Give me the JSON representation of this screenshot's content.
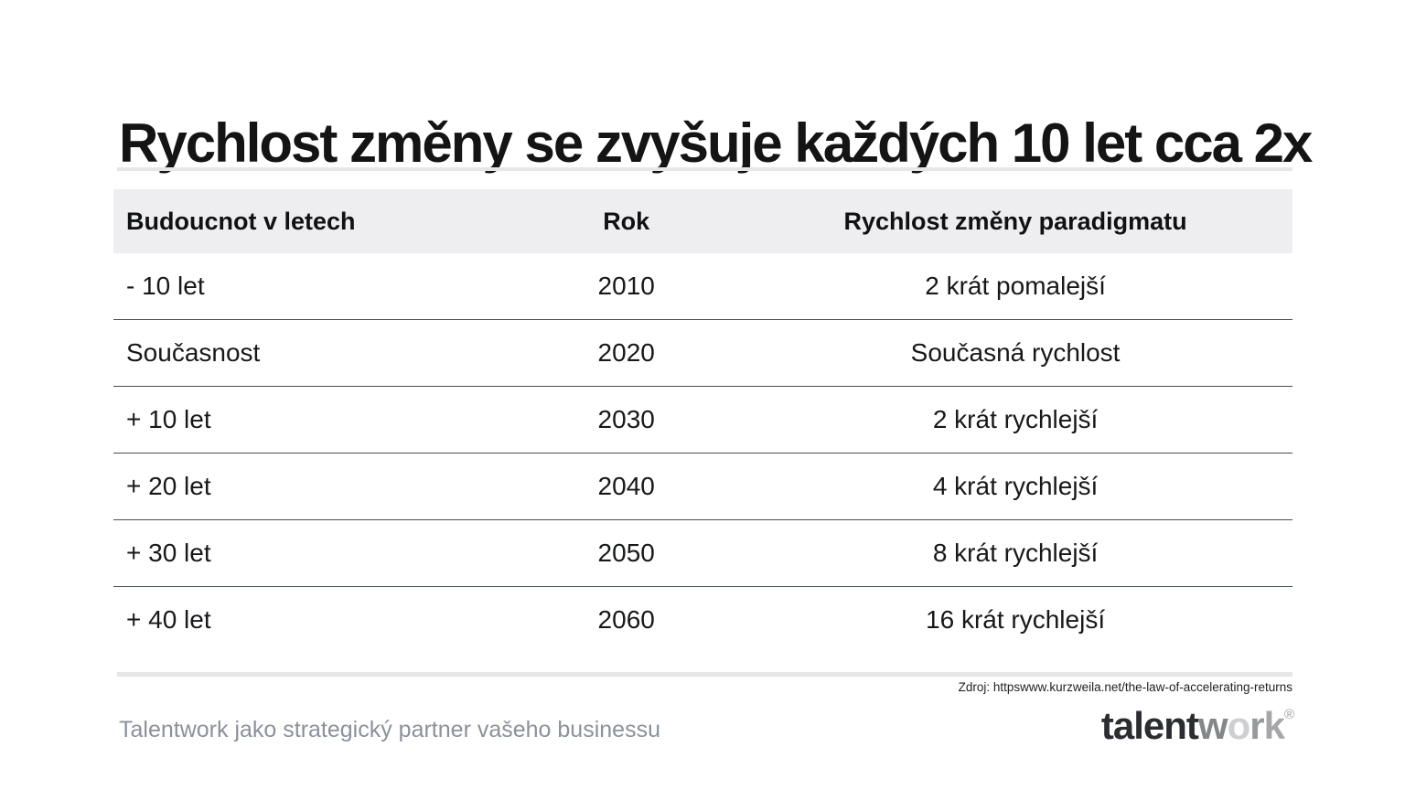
{
  "slide": {
    "title": "Rychlost změny se zvyšuje každých 10 let cca 2x",
    "table": {
      "headers": [
        "Budoucnot v letech",
        "Rok",
        "Rychlost změny paradigmatu"
      ],
      "rows": [
        [
          "- 10 let",
          "2010",
          "2 krát pomalejší"
        ],
        [
          "Současnost",
          "2020",
          "Současná rychlost"
        ],
        [
          "+ 10 let",
          "2030",
          "2 krát rychlejší"
        ],
        [
          "+ 20 let",
          "2040",
          "4 krát rychlejší"
        ],
        [
          "+ 30 let",
          "2050",
          "8 krát rychlejší"
        ],
        [
          "+ 40 let",
          "2060",
          "16 krát rychlejší"
        ]
      ]
    },
    "source": "Zdroj: httpswww.kurzweila.net/the-law-of-accelerating-returns",
    "footer": {
      "tagline": "Talentwork jako strategický partner vašeho businessu",
      "logo": {
        "talent": "talent",
        "w": "w",
        "o": "o",
        "r": "r",
        "k": "k",
        "registered": "®"
      }
    },
    "colors": {
      "header_bg": "#eeedf0",
      "row_separator": "#4a4d52",
      "divider": "#e6e6e8",
      "title_text": "#141414",
      "tagline_text": "#8b919b",
      "logo_dark": "#2b2d31"
    }
  }
}
